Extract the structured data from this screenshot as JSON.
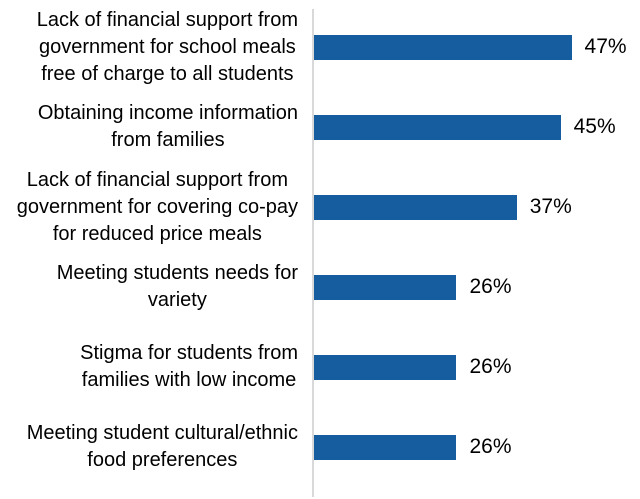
{
  "chart_data": {
    "type": "bar",
    "orientation": "horizontal",
    "title": "",
    "xlabel": "",
    "ylabel": "",
    "xlim": [
      0,
      50
    ],
    "grid": false,
    "legend": false,
    "bar_color": "#155D9E",
    "axis_line_color": "#D9D9D9",
    "text_color": "#000000",
    "categories": [
      "Lack of financial support from government for school meals free of charge to all students",
      "Obtaining income information from families",
      "Lack of financial support from government for covering co-pay for reduced price meals",
      "Meeting students needs for variety",
      "Stigma for students from families with low income",
      "Meeting student cultural/ethnic food preferences"
    ],
    "category_lines": [
      [
        "Lack of financial support from",
        "government for school meals",
        "free of charge to all students"
      ],
      [
        "Obtaining income information",
        "from families"
      ],
      [
        "Lack of financial support from",
        "government for covering co-pay",
        "for reduced price meals"
      ],
      [
        "Meeting students needs for",
        "variety"
      ],
      [
        "Stigma for students from",
        "families with low income"
      ],
      [
        "Meeting student cultural/ethnic",
        "food preferences"
      ]
    ],
    "values": [
      47,
      45,
      37,
      26,
      26,
      26
    ],
    "value_labels": [
      "47%",
      "45%",
      "37%",
      "26%",
      "26%",
      "26%"
    ]
  }
}
